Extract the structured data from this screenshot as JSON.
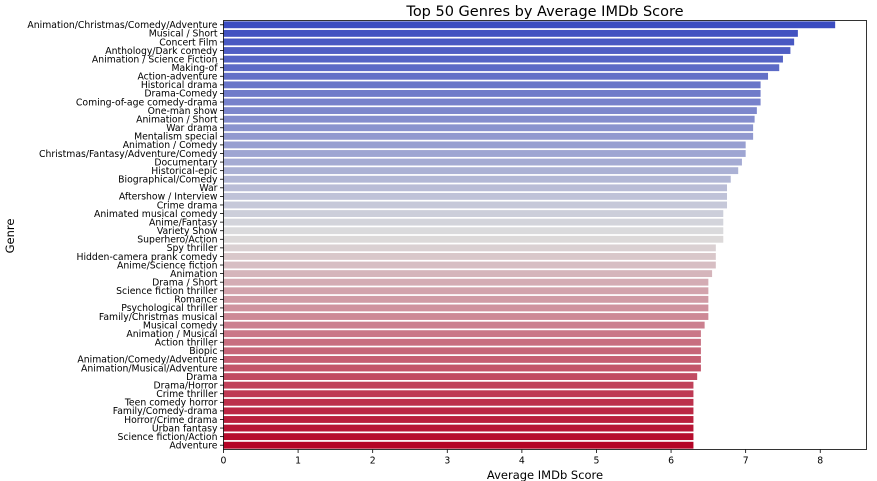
{
  "chart_data": {
    "type": "bar",
    "orientation": "horizontal",
    "title": "Top 50 Genres by Average IMDb Score",
    "xlabel": "Average IMDb Score",
    "ylabel": "Genre",
    "xlim": [
      0,
      8.62
    ],
    "xticks": [
      "0",
      "1",
      "2",
      "3",
      "4",
      "5",
      "6",
      "7",
      "8"
    ],
    "grid": false,
    "legend": "none",
    "colormap": "coolwarm",
    "colors": {
      "start": "#3b4cc0",
      "mid": "#dddddd",
      "end": "#b40426"
    },
    "categories": [
      "Animation/Christmas/Comedy/Adventure",
      "Musical / Short",
      "Concert Film",
      "Anthology/Dark comedy",
      "Animation / Science Fiction",
      "Making-of",
      "Action-adventure",
      "Historical drama",
      "Drama-Comedy",
      "Coming-of-age comedy-drama",
      "One-man show",
      "Animation / Short",
      "War drama",
      "Mentalism special",
      "Animation / Comedy",
      "Christmas/Fantasy/Adventure/Comedy",
      "Documentary",
      "Historical-epic",
      "Biographical/Comedy",
      "War",
      "Aftershow / Interview",
      "Crime drama",
      "Animated musical comedy",
      "Anime/Fantasy",
      "Variety Show",
      "Superhero/Action",
      "Spy thriller",
      "Hidden-camera prank comedy",
      "Anime/Science fiction",
      "Animation",
      "Drama / Short",
      "Science fiction thriller",
      "Romance",
      "Psychological thriller",
      "Family/Christmas musical",
      "Musical comedy",
      "Animation / Musical",
      "Action thriller",
      "Biopic",
      "Animation/Comedy/Adventure",
      "Animation/Musical/Adventure",
      "Drama",
      "Drama/Horror",
      "Crime thriller",
      "Teen comedy horror",
      "Family/Comedy-drama",
      "Horror/Crime drama",
      "Urban fantasy",
      "Science fiction/Action",
      "Adventure"
    ],
    "values": [
      8.2,
      7.7,
      7.65,
      7.6,
      7.5,
      7.45,
      7.3,
      7.2,
      7.2,
      7.2,
      7.15,
      7.12,
      7.1,
      7.1,
      7.0,
      7.0,
      6.95,
      6.9,
      6.8,
      6.75,
      6.75,
      6.75,
      6.7,
      6.7,
      6.7,
      6.7,
      6.6,
      6.6,
      6.6,
      6.55,
      6.5,
      6.5,
      6.5,
      6.5,
      6.5,
      6.45,
      6.4,
      6.4,
      6.4,
      6.4,
      6.4,
      6.35,
      6.3,
      6.3,
      6.3,
      6.3,
      6.3,
      6.3,
      6.3,
      6.3
    ]
  }
}
